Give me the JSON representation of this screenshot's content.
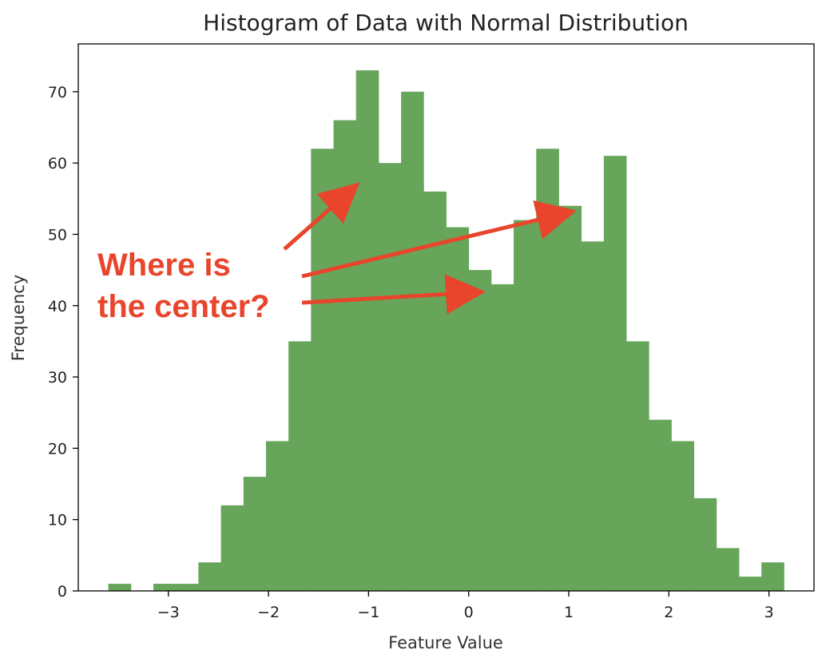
{
  "chart_data": {
    "type": "bar",
    "title": "Histogram of Data with Normal Distribution",
    "xlabel": "Feature Value",
    "ylabel": "Frequency",
    "bin_edges": [
      -3.6,
      -3.375,
      -3.15,
      -2.925,
      -2.7,
      -2.475,
      -2.25,
      -2.025,
      -1.8,
      -1.575,
      -1.35,
      -1.125,
      -0.9,
      -0.675,
      -0.45,
      -0.225,
      0.0,
      0.225,
      0.45,
      0.675,
      0.9,
      1.125,
      1.35,
      1.575,
      1.8,
      2.025,
      2.25,
      2.475,
      2.7,
      2.925,
      3.15
    ],
    "values": [
      1,
      0,
      1,
      1,
      4,
      12,
      16,
      21,
      35,
      62,
      66,
      73,
      60,
      70,
      56,
      51,
      45,
      43,
      52,
      62,
      54,
      49,
      61,
      35,
      24,
      21,
      13,
      6,
      2,
      4
    ],
    "bar_color": "#66a55a",
    "xlim": [
      -3.9,
      3.45
    ],
    "ylim": [
      0,
      76.7
    ],
    "xticks": [
      -3,
      -2,
      -1,
      0,
      1,
      2,
      3
    ],
    "xtick_labels": [
      "−3",
      "−2",
      "−1",
      "0",
      "1",
      "2",
      "3"
    ],
    "yticks": [
      0,
      10,
      20,
      30,
      40,
      50,
      60,
      70
    ],
    "grid": false,
    "annotation": {
      "lines": [
        "Where is",
        "the center?"
      ],
      "color": "#e8452c"
    }
  }
}
